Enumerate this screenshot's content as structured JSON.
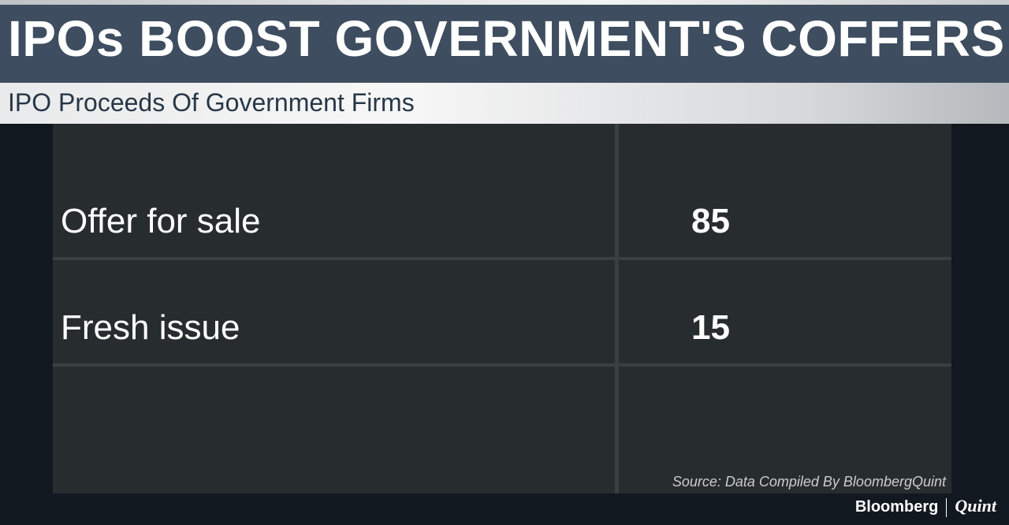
{
  "header": {
    "title": "IPOs BOOST GOVERNMENT'S COFFERS",
    "subtitle": "IPO Proceeds Of Government Firms"
  },
  "table": {
    "rows": [
      [
        "Offer for sale",
        85
      ],
      [
        "Fresh issue",
        15
      ]
    ]
  },
  "source": "Source: Data Compiled By BloombergQuint",
  "brand": {
    "left": "Bloomberg",
    "right": "Quint"
  }
}
